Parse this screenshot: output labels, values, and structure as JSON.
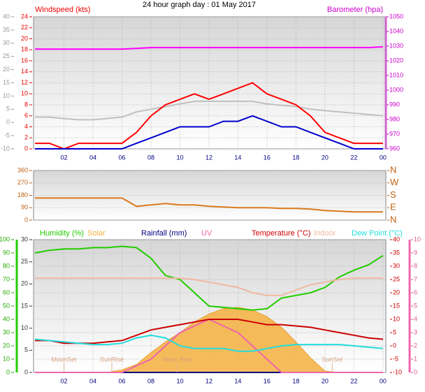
{
  "chart_data": [
    {
      "type": "line",
      "title": "24 hour graph day : 01 May 2017",
      "y_label": "Windspeed (kts)",
      "y2_label": "Barometer (hpa)",
      "x": [
        0,
        1,
        2,
        3,
        4,
        5,
        6,
        7,
        8,
        9,
        10,
        11,
        12,
        13,
        14,
        15,
        16,
        17,
        18,
        19,
        20,
        21,
        22,
        23,
        24
      ],
      "xlim": [
        -0.1,
        24.2
      ],
      "xticks": [
        {
          "value": 2,
          "label": "02"
        },
        {
          "value": 4,
          "label": "04"
        },
        {
          "value": 6,
          "label": "06"
        },
        {
          "value": 8,
          "label": "08"
        },
        10,
        12,
        14,
        16,
        18,
        20,
        22,
        {
          "value": 24,
          "label": "00"
        }
      ],
      "ylim": [
        0,
        24
      ],
      "yticks": [
        0,
        2,
        4,
        6,
        8,
        10,
        12,
        14,
        16,
        18,
        20,
        22,
        24
      ],
      "y2lim": [
        960,
        1050
      ],
      "y2ticks": [
        960,
        970,
        980,
        990,
        1000,
        1010,
        1020,
        1030,
        1040,
        1050
      ],
      "y3lim": [
        -10,
        40
      ],
      "y3ticks": [
        -10,
        -5,
        0,
        5,
        10,
        15,
        20,
        25,
        30,
        35,
        40
      ],
      "grid": true,
      "series": [
        {
          "color": "#c0c0c0",
          "axis": "y3",
          "values": [
            2,
            2,
            1.5,
            1,
            1,
            1.5,
            2,
            4,
            5,
            6,
            7,
            8,
            8,
            8,
            8,
            8,
            7,
            6.5,
            6,
            5,
            4.5,
            4,
            3.5,
            3,
            2.5
          ]
        },
        {
          "color": "#ff0000",
          "axis": "y",
          "values": [
            1,
            1,
            0,
            1,
            1,
            1,
            1,
            3,
            6,
            8,
            9,
            10,
            9,
            10,
            11,
            12,
            10,
            9,
            8,
            6,
            3,
            2,
            1,
            1,
            1
          ]
        },
        {
          "color": "#0000cc",
          "axis": "y",
          "values": [
            0,
            0,
            0,
            0,
            0,
            0,
            0,
            1,
            2,
            3,
            4,
            4,
            4,
            5,
            5,
            6,
            5,
            4,
            4,
            3,
            2,
            1,
            0,
            0,
            0
          ]
        },
        {
          "color": "#ff00ff",
          "axis": "y2",
          "values": [
            1028,
            1028,
            1028,
            1028,
            1028,
            1028,
            1028,
            1028.5,
            1029,
            1029,
            1029,
            1029,
            1029,
            1029,
            1029,
            1029,
            1029,
            1029,
            1029,
            1029,
            1029,
            1029,
            1029,
            1029,
            1029.5
          ]
        }
      ]
    },
    {
      "type": "line",
      "x": [
        0,
        1,
        2,
        3,
        4,
        5,
        6,
        7,
        8,
        9,
        10,
        11,
        12,
        13,
        14,
        15,
        16,
        17,
        18,
        19,
        20,
        21,
        22,
        23,
        24
      ],
      "xlim": [
        -0.1,
        24.2
      ],
      "ylim": [
        0,
        360
      ],
      "yticks": [
        0,
        90,
        180,
        270,
        360
      ],
      "y2lim": [
        0,
        360
      ],
      "y2ticks": [
        {
          "value": 0,
          "label": "N"
        },
        {
          "value": 90,
          "label": "E"
        },
        {
          "value": 180,
          "label": "S"
        },
        {
          "value": 270,
          "label": "W"
        },
        {
          "value": 360,
          "label": "N"
        }
      ],
      "grid": true,
      "series": [
        {
          "color": "#d97a1e",
          "axis": "y",
          "values": [
            160,
            160,
            160,
            160,
            160,
            160,
            160,
            100,
            110,
            120,
            110,
            110,
            100,
            95,
            90,
            90,
            90,
            85,
            85,
            80,
            70,
            65,
            60,
            60,
            60
          ]
        }
      ]
    },
    {
      "type": "line",
      "x": [
        0,
        1,
        2,
        3,
        4,
        5,
        6,
        7,
        8,
        9,
        10,
        11,
        12,
        13,
        14,
        15,
        16,
        17,
        18,
        19,
        20,
        21,
        22,
        23,
        24
      ],
      "xlim": [
        -0.1,
        24.2
      ],
      "xticks": [
        {
          "value": 2,
          "label": "02"
        },
        {
          "value": 4,
          "label": "04"
        },
        {
          "value": 6,
          "label": "06"
        },
        {
          "value": 8,
          "label": "08"
        },
        10,
        12,
        14,
        16,
        18,
        20,
        22,
        {
          "value": 24,
          "label": "00"
        }
      ],
      "ylim": [
        0,
        100
      ],
      "yticks": [
        0,
        10,
        20,
        30,
        40,
        50,
        60,
        70,
        80,
        90,
        100
      ],
      "y2lim": [
        -10,
        40
      ],
      "y2ticks": [
        -10,
        -5,
        0,
        5,
        10,
        15,
        20,
        25,
        30,
        35,
        40
      ],
      "y3lim": [
        0,
        30
      ],
      "y3ticks": [
        0,
        5,
        10,
        15,
        20,
        25,
        30
      ],
      "y4lim": [
        0,
        10
      ],
      "y4ticks": [
        0,
        1,
        2,
        3,
        4,
        5,
        6,
        7,
        8,
        9,
        10
      ],
      "y5lim": [
        0,
        1000
      ],
      "grid": true,
      "series": [
        {
          "name": "Humidity (%)",
          "color": "#22cc00",
          "axis": "y",
          "values": [
            90,
            92,
            93,
            93,
            94,
            94,
            95,
            94,
            86,
            73,
            70,
            60,
            50,
            49,
            48,
            47,
            48,
            56,
            58,
            60,
            64,
            72,
            77,
            81,
            88
          ]
        },
        {
          "name": "Solar",
          "color": "#f5b040",
          "axis": "y5",
          "fill": true,
          "values": [
            0,
            0,
            0,
            0,
            0,
            0,
            20,
            60,
            150,
            230,
            300,
            380,
            440,
            480,
            490,
            470,
            420,
            340,
            230,
            110,
            10,
            0,
            0,
            0,
            0
          ]
        },
        {
          "name": "Rainfall (mm)",
          "color": "#000080",
          "axis": "y3",
          "values": [
            0,
            0,
            0,
            0,
            0,
            0,
            0,
            0,
            0,
            0,
            0,
            0,
            0,
            0,
            0,
            0,
            0,
            0,
            0,
            0,
            0,
            0,
            0,
            0,
            0
          ]
        },
        {
          "name": "UV",
          "color": "#ee66aa",
          "axis": "y4",
          "values": [
            0,
            0,
            0,
            0,
            0,
            0,
            0,
            0.5,
            1,
            2,
            3,
            3.5,
            4,
            3.5,
            3,
            2,
            1,
            0,
            0,
            0,
            0,
            0,
            0,
            0,
            0
          ]
        },
        {
          "name": "Temperature (°C)",
          "color": "#cc0000",
          "axis": "y2",
          "values": [
            2,
            2,
            1,
            1,
            1,
            1.5,
            2,
            4,
            6,
            7,
            8,
            9,
            10,
            10,
            10,
            9,
            8,
            8,
            7.5,
            7,
            6,
            5,
            4,
            3,
            2.5
          ]
        },
        {
          "name": "Indoor",
          "color": "#f0b8a0",
          "axis": "y2",
          "values": [
            25.5,
            25.5,
            25.5,
            25.5,
            25.5,
            25.5,
            25.5,
            25.5,
            25.5,
            25.5,
            25.5,
            25,
            24,
            23,
            22,
            20,
            19,
            19,
            21,
            23,
            24,
            25,
            25.5,
            25.5,
            25.5
          ]
        },
        {
          "name": "Dew Point (°C)",
          "color": "#22dddd",
          "axis": "y2",
          "values": [
            2.5,
            2,
            1.5,
            1,
            0.5,
            0.5,
            1,
            3,
            4,
            3,
            0,
            -1,
            -1,
            -1,
            -2,
            -2,
            -1,
            0,
            0.5,
            0.5,
            0.5,
            0.5,
            0,
            -0.5,
            -1
          ]
        }
      ],
      "annotations": [
        {
          "text": "MoonSet",
          "x": 2
        },
        {
          "text": "SunRise",
          "x": 5.3
        },
        {
          "text": "Moon Rise",
          "x": 9.8
        },
        {
          "text": "SunSet",
          "x": 20.5
        }
      ]
    }
  ]
}
